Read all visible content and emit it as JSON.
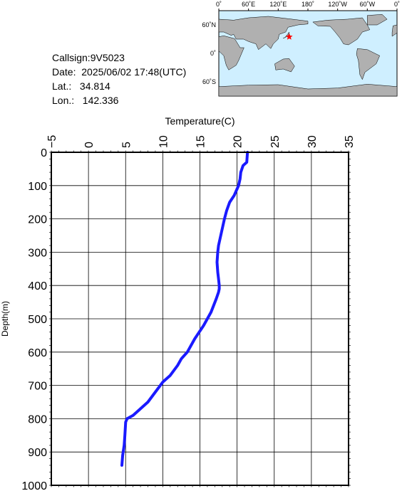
{
  "info": {
    "callsign": "Callsign:9V5023",
    "date": "Date:  2025/06/02 17:48(UTC)",
    "lat": "Lat.:   34.814",
    "lon": "Lon.:   142.336"
  },
  "map": {
    "lon_labels": [
      "0˚",
      "60˚E",
      "120˚E",
      "180˚",
      "120˚W",
      "60˚W",
      "0˚"
    ],
    "lat_labels": [
      "60˚N",
      "0˚",
      "60˚S"
    ],
    "marker": {
      "lon": 142.3,
      "lat": 34.8,
      "color": "#ff0000"
    },
    "ocean_color": "#cfefff",
    "land_color": "#b0b0b0"
  },
  "chart_data": {
    "type": "line",
    "xlabel": "Temperature(C)",
    "ylabel": "Depth(m)",
    "xlim": [
      -5,
      35
    ],
    "ylim": [
      0,
      1000
    ],
    "x_ticks": [
      "−5",
      "0",
      "5",
      "10",
      "15",
      "20",
      "25",
      "30",
      "35"
    ],
    "y_ticks": [
      "0",
      "100",
      "200",
      "300",
      "400",
      "500",
      "600",
      "700",
      "800",
      "900",
      "1000"
    ],
    "series_color": "#1a1aff",
    "grid": true,
    "series": [
      {
        "x": [
          21.4,
          21.3,
          20.8,
          20.5,
          20.4,
          20.2,
          20.0,
          19.6,
          19.0,
          18.6,
          18.3,
          18.1,
          17.8,
          17.5,
          17.4,
          17.3,
          17.4,
          17.5,
          17.6,
          17.6,
          17.5,
          17.2,
          16.5,
          15.5,
          14.3,
          13.3,
          12.5,
          12.0,
          11.0,
          10.0,
          9.0,
          8.0,
          7.0,
          6.0,
          5.2,
          5.0,
          4.9,
          4.8,
          4.6,
          4.5
        ],
        "y": [
          0,
          30,
          40,
          60,
          80,
          100,
          110,
          130,
          150,
          175,
          200,
          220,
          250,
          280,
          300,
          330,
          360,
          380,
          400,
          410,
          420,
          440,
          480,
          520,
          560,
          600,
          620,
          640,
          670,
          690,
          720,
          750,
          770,
          790,
          800,
          810,
          850,
          880,
          910,
          940
        ]
      }
    ]
  }
}
